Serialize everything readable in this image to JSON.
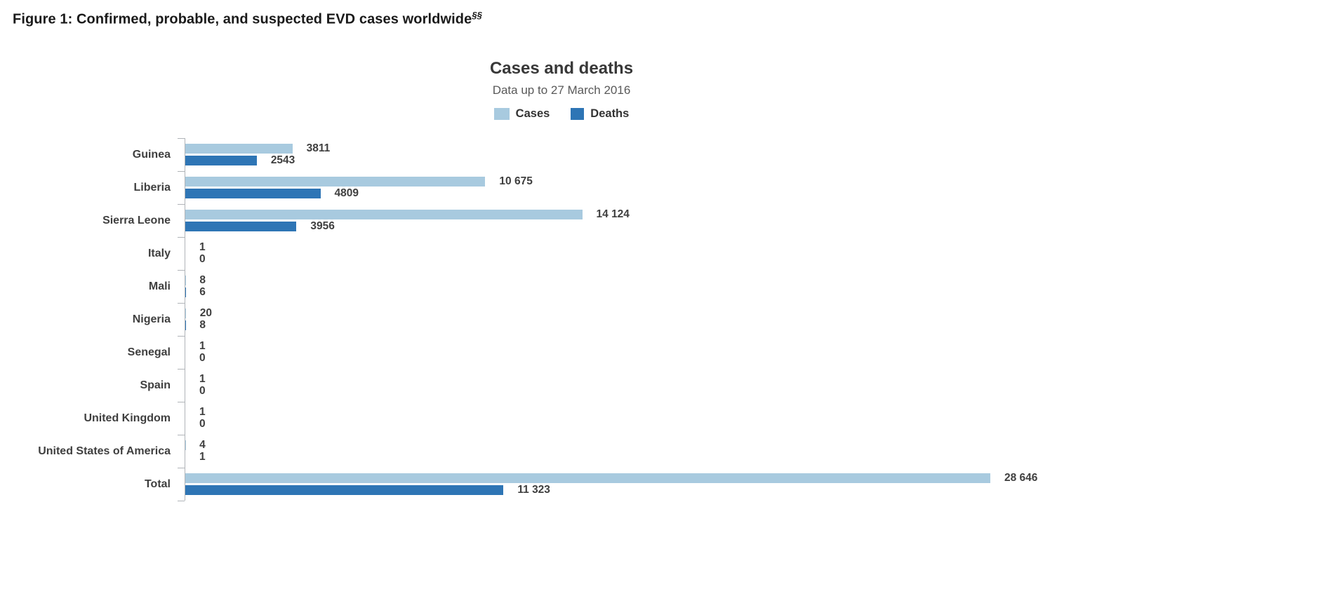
{
  "header": {
    "figure_title": "Figure 1: Confirmed, probable, and suspected EVD cases worldwide",
    "figure_title_superscript": "§§"
  },
  "chart": {
    "title": "Cases and deaths",
    "subtitle": "Data up to 27 March 2016",
    "legend_cases_label": "Cases",
    "legend_deaths_label": "Deaths"
  },
  "colors": {
    "cases": "#a8cadf",
    "deaths": "#2e75b5",
    "axis": "#b0b4b8",
    "text": "#3f3f3f"
  },
  "chart_data": {
    "type": "bar",
    "orientation": "horizontal",
    "title": "Cases and deaths",
    "subtitle": "Data up to 27 March 2016",
    "legend_position": "top",
    "grid": false,
    "xlim": [
      0,
      28646
    ],
    "categories": [
      "Guinea",
      "Liberia",
      "Sierra Leone",
      "Italy",
      "Mali",
      "Nigeria",
      "Senegal",
      "Spain",
      "United Kingdom",
      "United States of America",
      "Total"
    ],
    "series": [
      {
        "name": "Cases",
        "color": "#a8cadf",
        "values": [
          3811,
          10675,
          14124,
          1,
          8,
          20,
          1,
          1,
          1,
          4,
          28646
        ],
        "labels": [
          "3811",
          "10 675",
          "14 124",
          "1",
          "8",
          "20",
          "1",
          "1",
          "1",
          "4",
          "28 646"
        ]
      },
      {
        "name": "Deaths",
        "color": "#2e75b5",
        "values": [
          2543,
          4809,
          3956,
          0,
          6,
          8,
          0,
          0,
          0,
          1,
          11323
        ],
        "labels": [
          "2543",
          "4809",
          "3956",
          "0",
          "6",
          "8",
          "0",
          "0",
          "0",
          "1",
          "11 323"
        ]
      }
    ]
  }
}
